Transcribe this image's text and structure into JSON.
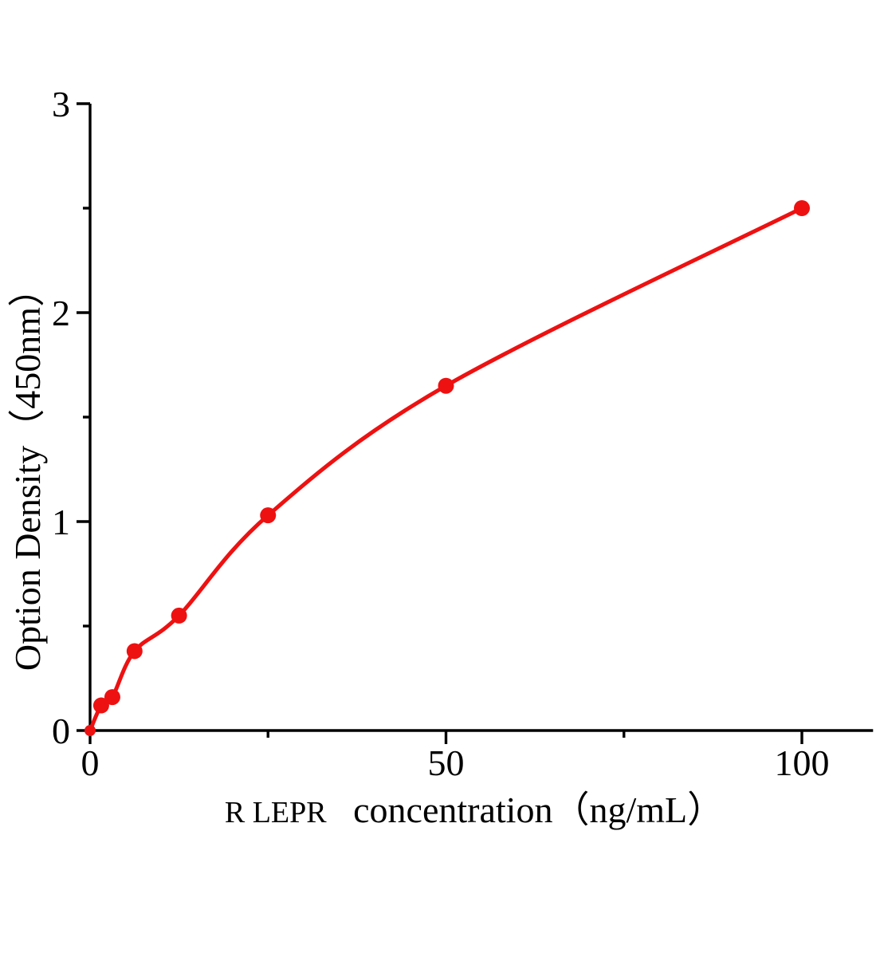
{
  "page": {
    "background": "#ffffff"
  },
  "chart_data": {
    "type": "line",
    "title": "",
    "xlabel": "R LEPR  concentration（ng/mL）",
    "xlabel_parts": {
      "prefix": "R LEPR",
      "rest": "concentration（ng/mL）"
    },
    "ylabel": "Option Density（450nm）",
    "x": [
      0,
      1.56,
      3.13,
      6.25,
      12.5,
      25,
      50,
      100
    ],
    "y": [
      0,
      0.12,
      0.16,
      0.38,
      0.55,
      1.03,
      1.65,
      2.5
    ],
    "xlim": [
      0,
      110
    ],
    "ylim": [
      0,
      3
    ],
    "x_ticks_major": [
      0,
      50,
      100
    ],
    "x_tick_labels": [
      "0",
      "50",
      "100"
    ],
    "x_ticks_minor": [
      25,
      75
    ],
    "y_ticks_major": [
      0,
      1,
      2,
      3
    ],
    "y_tick_labels": [
      "0",
      "1",
      "2",
      "3"
    ],
    "y_ticks_minor": [
      0.5,
      1.5,
      2.5
    ],
    "grid": false,
    "legend": null,
    "line_color": "#ee1111",
    "marker_color": "#ee1111",
    "marker": "circle",
    "axis_color": "#000000"
  }
}
